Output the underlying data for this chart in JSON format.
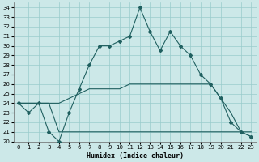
{
  "xlabel": "Humidex (Indice chaleur)",
  "bg_color": "#cce8e8",
  "grid_color": "#99cccc",
  "line_color": "#206060",
  "xlim": [
    -0.5,
    23.5
  ],
  "ylim": [
    20,
    34.5
  ],
  "yticks": [
    20,
    21,
    22,
    23,
    24,
    25,
    26,
    27,
    28,
    29,
    30,
    31,
    32,
    33,
    34
  ],
  "xticks": [
    0,
    1,
    2,
    3,
    4,
    5,
    6,
    7,
    8,
    9,
    10,
    11,
    12,
    13,
    14,
    15,
    16,
    17,
    18,
    19,
    20,
    21,
    22,
    23
  ],
  "line1_x": [
    0,
    1,
    2,
    3,
    4,
    5,
    6,
    7,
    8,
    9,
    10,
    11,
    12,
    13,
    14,
    15,
    16,
    17,
    18,
    19,
    20,
    21,
    22,
    23
  ],
  "line1_y": [
    24,
    23,
    24,
    21,
    20,
    23,
    25.5,
    28,
    30,
    30,
    30.5,
    31,
    34,
    31.5,
    29.5,
    31.5,
    30,
    29,
    27,
    26,
    24.5,
    22,
    21,
    20.5
  ],
  "line2_x": [
    0,
    1,
    2,
    3,
    4,
    5,
    6,
    7,
    8,
    9,
    10,
    11,
    12,
    13,
    14,
    15,
    16,
    17,
    18,
    19,
    20,
    21,
    22,
    23
  ],
  "line2_y": [
    24,
    24,
    24,
    24,
    21,
    21,
    21,
    21,
    21,
    21,
    21,
    21,
    21,
    21,
    21,
    21,
    21,
    21,
    21,
    21,
    21,
    21,
    21,
    21
  ],
  "line3_x": [
    0,
    1,
    2,
    3,
    4,
    5,
    6,
    7,
    8,
    9,
    10,
    11,
    12,
    13,
    14,
    15,
    16,
    17,
    18,
    19,
    20,
    21,
    22,
    23
  ],
  "line3_y": [
    24,
    24,
    24,
    24,
    24,
    24.5,
    25,
    25.5,
    25.5,
    25.5,
    25.5,
    26,
    26,
    26,
    26,
    26,
    26,
    26,
    26,
    26,
    24.5,
    23,
    21,
    20.5
  ],
  "xlabel_fontsize": 6,
  "tick_fontsize": 5
}
